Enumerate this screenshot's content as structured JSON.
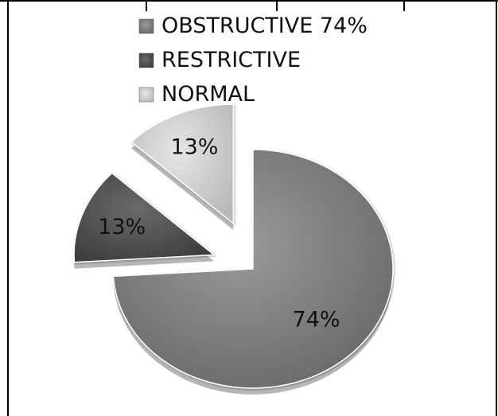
{
  "chart_data": {
    "type": "pie",
    "title": "",
    "categories": [
      "OBSTRUCTIVE 74%",
      "RESTRICTIVE",
      "NORMAL"
    ],
    "values": [
      74,
      13,
      13
    ],
    "data_labels": [
      "74%",
      "13%",
      "13%"
    ],
    "colors": [
      "#7a7a7a",
      "#4d4d4d",
      "#cfcfcf"
    ],
    "exploded": true,
    "legend_position": "top",
    "style": "3d-shaded grayscale"
  }
}
